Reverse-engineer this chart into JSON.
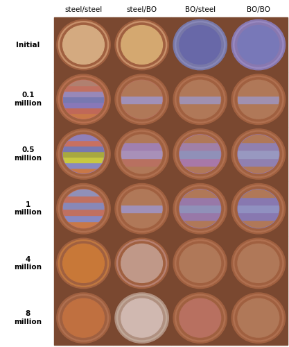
{
  "col_headers": [
    "steel/steel",
    "steel/BO",
    "BO/steel",
    "BO/BO"
  ],
  "row_headers": [
    "Initial",
    "0.1\nmillion",
    "0.5\nmillion",
    "1\nmillion",
    "4\nmillion",
    "8\nmillion"
  ],
  "background_color": "#ffffff",
  "cell_bg_color": "#8a5540",
  "grid_color": "#666666",
  "header_fontsize": 7.5,
  "row_fontsize": 7.5,
  "figure_bg": "#ffffff",
  "cell_images": [
    [
      {
        "bg": "#7a4830",
        "ring2": "#a06040",
        "ring1": "#c8906a",
        "center": "#d4aa80",
        "stripes": [],
        "stripe_top": "#c8906a",
        "worn": false
      },
      {
        "bg": "#7a4830",
        "ring2": "#a06040",
        "ring1": "#c8906a",
        "center": "#d4a870",
        "stripes": [],
        "stripe_top": "#c8906a",
        "worn": false
      },
      {
        "bg": "#7a4830",
        "ring2": "#7878a8",
        "ring1": "#8888b8",
        "center": "#6868a8",
        "stripes": [],
        "stripe_top": "#8888b8",
        "worn": false
      },
      {
        "bg": "#7a4830",
        "ring2": "#8878b0",
        "ring1": "#9888c0",
        "center": "#7878b8",
        "stripes": [],
        "stripe_top": "#9888c0",
        "worn": false
      }
    ],
    [
      {
        "bg": "#7a4830",
        "ring2": "#a06040",
        "ring1": "#b87050",
        "center": "#c87060",
        "stripes": [
          "#c87848",
          "#c06858",
          "#8878b8",
          "#7878b0",
          "#9888b8",
          "#c07060",
          "#b08070"
        ],
        "stripe_top": "#c87848",
        "worn": false
      },
      {
        "bg": "#7a4830",
        "ring2": "#a06040",
        "ring1": "#b07050",
        "center": "#b87060",
        "stripes": [
          "#b07858",
          "#b07858",
          "#a090b8",
          "#b07858",
          "#b07858"
        ],
        "stripe_top": "#b07858",
        "worn": false
      },
      {
        "bg": "#7a4830",
        "ring2": "#a06040",
        "ring1": "#b07050",
        "center": "#b07858",
        "stripes": [
          "#b07858",
          "#b07858",
          "#a090b0",
          "#b07858",
          "#b07858"
        ],
        "stripe_top": "#b07858",
        "worn": false
      },
      {
        "bg": "#7a4830",
        "ring2": "#a06040",
        "ring1": "#b07050",
        "center": "#b07858",
        "stripes": [
          "#b07858",
          "#b07858",
          "#a090b0",
          "#b07858",
          "#b07858"
        ],
        "stripe_top": "#b07858",
        "worn": false
      }
    ],
    [
      {
        "bg": "#7a4830",
        "ring2": "#a06040",
        "ring1": "#b07050",
        "center": "#9878b0",
        "stripes": [
          "#c87848",
          "#8888c0",
          "#c8c840",
          "#a8a840",
          "#7878b0",
          "#c87060",
          "#9080b8"
        ],
        "stripe_top": "#c87848",
        "worn": false
      },
      {
        "bg": "#7a4830",
        "ring2": "#a06040",
        "ring1": "#b07050",
        "center": "#b07858",
        "stripes": [
          "#b07858",
          "#b87060",
          "#a890b8",
          "#a080b0",
          "#b07858"
        ],
        "stripe_top": "#b07858",
        "worn": false
      },
      {
        "bg": "#7a4830",
        "ring2": "#a06040",
        "ring1": "#b07050",
        "center": "#a878a8",
        "stripes": [
          "#b07858",
          "#a878a8",
          "#9090b8",
          "#a080a8",
          "#b07858"
        ],
        "stripe_top": "#b07858",
        "worn": false
      },
      {
        "bg": "#7a4830",
        "ring2": "#a06040",
        "ring1": "#b07050",
        "center": "#9878b0",
        "stripes": [
          "#b07858",
          "#9080b0",
          "#9898c0",
          "#9080b0",
          "#b07858"
        ],
        "stripe_top": "#b07858",
        "worn": false
      }
    ],
    [
      {
        "bg": "#7a4830",
        "ring2": "#a06040",
        "ring1": "#b07050",
        "center": "#c07060",
        "stripes": [
          "#c87848",
          "#8888c0",
          "#c07060",
          "#8888b8",
          "#c07060",
          "#9090b8"
        ],
        "stripe_top": "#c87848",
        "worn": false
      },
      {
        "bg": "#7a4830",
        "ring2": "#a06040",
        "ring1": "#b07050",
        "center": "#b07858",
        "stripes": [
          "#b07858",
          "#b07858",
          "#a090b8",
          "#b07858",
          "#b07858"
        ],
        "stripe_top": "#b07858",
        "worn": false
      },
      {
        "bg": "#7a4830",
        "ring2": "#a06040",
        "ring1": "#b07050",
        "center": "#9878a8",
        "stripes": [
          "#b07858",
          "#9878a8",
          "#9090b8",
          "#9878a8",
          "#b07858"
        ],
        "stripe_top": "#b07858",
        "worn": false
      },
      {
        "bg": "#7a4830",
        "ring2": "#a06040",
        "ring1": "#b07050",
        "center": "#8878b0",
        "stripes": [
          "#b07858",
          "#8878b0",
          "#9090c0",
          "#8878b0",
          "#b07858"
        ],
        "stripe_top": "#b07858",
        "worn": false
      }
    ],
    [
      {
        "bg": "#7a4830",
        "ring2": "#a06040",
        "ring1": "#c07840",
        "center": "#c87838",
        "stripes": [],
        "stripe_top": "#c07840",
        "worn": true,
        "worn_color": "#c07838"
      },
      {
        "bg": "#7a4830",
        "ring2": "#a06040",
        "ring1": "#b88070",
        "center": "#c09888",
        "stripes": [],
        "stripe_top": "#b88070",
        "worn": false
      },
      {
        "bg": "#7a4830",
        "ring2": "#a06040",
        "ring1": "#b07050",
        "center": "#b07858",
        "stripes": [],
        "stripe_top": "#b07050",
        "worn": false
      },
      {
        "bg": "#7a4830",
        "ring2": "#a06040",
        "ring1": "#b07050",
        "center": "#b07858",
        "stripes": [],
        "stripe_top": "#b07050",
        "worn": false
      }
    ],
    [
      {
        "bg": "#7a4830",
        "ring2": "#a06040",
        "ring1": "#b07050",
        "center": "#c07040",
        "stripes": [],
        "stripe_top": "#b07050",
        "worn": true,
        "worn_color": "#a85030"
      },
      {
        "bg": "#7a4830",
        "ring2": "#b09080",
        "ring1": "#c0a898",
        "center": "#d0b8b0",
        "stripes": [],
        "stripe_top": "#c0a898",
        "worn": false
      },
      {
        "bg": "#7a4830",
        "ring2": "#a06040",
        "ring1": "#b07050",
        "center": "#b87060",
        "stripes": [],
        "stripe_top": "#b07050",
        "worn": true,
        "worn_color": "#c08060"
      },
      {
        "bg": "#7a4830",
        "ring2": "#a06040",
        "ring1": "#b07050",
        "center": "#b07858",
        "stripes": [],
        "stripe_top": "#b07050",
        "worn": false
      }
    ]
  ]
}
